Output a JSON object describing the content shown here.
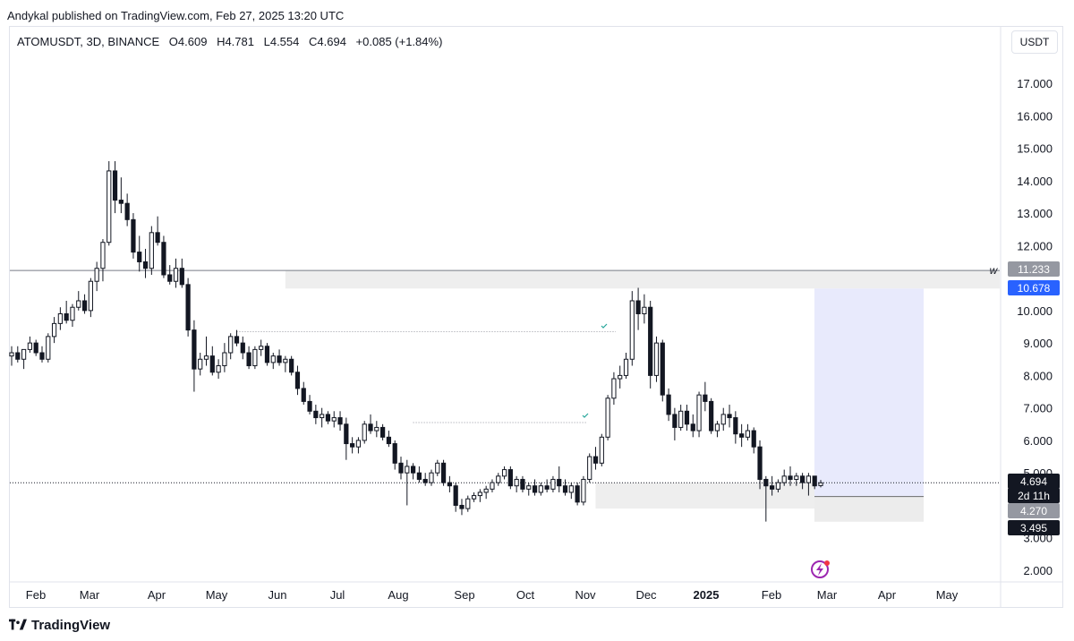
{
  "publisher_line": "Andykal published on TradingView.com, Feb 27, 2025 13:20 UTC",
  "legend": {
    "symbol": "ATOMUSDT, 3D, BINANCE",
    "open": "O4.609",
    "high": "H4.781",
    "low": "L4.554",
    "close": "C4.694",
    "change": "+0.085 (+1.84%)"
  },
  "currency_button": "USDT",
  "footer_brand": "TradingView",
  "colors": {
    "bull_body": "#ffffff",
    "bear_body": "#131722",
    "wick": "#131722",
    "zone": "#eeeeee",
    "position_zone": "#e8eafc",
    "accent_blue": "#2962ff",
    "check_green": "#26a69a"
  },
  "chart_data": {
    "type": "candlestick",
    "title": "ATOMUSDT, 3D, BINANCE",
    "y_axis": {
      "ticks": [
        "17.000",
        "16.000",
        "15.000",
        "14.000",
        "13.000",
        "12.000",
        "10.000",
        "9.000",
        "8.000",
        "7.000",
        "6.000",
        "5.000",
        "3.000",
        "2.000"
      ],
      "ylim": [
        1.7,
        18.4
      ]
    },
    "x_axis": {
      "ticks": [
        "Feb",
        "Mar",
        "Apr",
        "May",
        "Jun",
        "Jul",
        "Aug",
        "Sep",
        "Oct",
        "Nov",
        "Dec",
        "2025",
        "Feb",
        "Mar",
        "Apr",
        "May"
      ],
      "bold_ticks": [
        "2025"
      ]
    },
    "candle_interval_days": 3,
    "ohlc": [
      [
        8.6,
        8.9,
        8.3,
        8.7
      ],
      [
        8.7,
        8.9,
        8.4,
        8.5
      ],
      [
        8.5,
        8.8,
        8.2,
        8.8
      ],
      [
        8.8,
        9.2,
        8.7,
        9.0
      ],
      [
        9.0,
        9.1,
        8.6,
        8.7
      ],
      [
        8.7,
        8.9,
        8.4,
        8.5
      ],
      [
        8.5,
        9.3,
        8.4,
        9.2
      ],
      [
        9.2,
        9.8,
        9.0,
        9.6
      ],
      [
        9.6,
        10.1,
        9.4,
        9.9
      ],
      [
        9.9,
        10.3,
        9.6,
        9.7
      ],
      [
        9.7,
        10.2,
        9.5,
        10.1
      ],
      [
        10.1,
        10.6,
        10.0,
        10.3
      ],
      [
        10.3,
        10.5,
        9.9,
        10.0
      ],
      [
        10.0,
        11.0,
        9.8,
        10.9
      ],
      [
        10.9,
        11.5,
        10.6,
        11.3
      ],
      [
        11.3,
        12.2,
        10.9,
        12.1
      ],
      [
        12.1,
        14.6,
        12.0,
        14.3
      ],
      [
        14.3,
        14.6,
        13.0,
        13.4
      ],
      [
        13.4,
        14.1,
        13.0,
        13.3
      ],
      [
        13.3,
        13.6,
        12.6,
        12.8
      ],
      [
        12.8,
        13.0,
        11.6,
        11.8
      ],
      [
        11.8,
        12.3,
        11.2,
        11.5
      ],
      [
        11.5,
        11.9,
        11.0,
        11.3
      ],
      [
        11.3,
        12.6,
        11.1,
        12.4
      ],
      [
        12.4,
        12.9,
        12.0,
        12.1
      ],
      [
        12.1,
        12.3,
        11.0,
        11.1
      ],
      [
        11.1,
        11.4,
        10.8,
        10.9
      ],
      [
        10.9,
        11.6,
        10.7,
        11.3
      ],
      [
        11.3,
        11.6,
        10.7,
        10.8
      ],
      [
        10.8,
        11.0,
        9.2,
        9.4
      ],
      [
        9.4,
        9.7,
        7.5,
        8.2
      ],
      [
        8.2,
        8.7,
        8.0,
        8.5
      ],
      [
        8.5,
        9.2,
        8.3,
        8.6
      ],
      [
        8.6,
        8.9,
        8.0,
        8.1
      ],
      [
        8.1,
        8.5,
        7.9,
        8.3
      ],
      [
        8.3,
        9.0,
        8.1,
        8.7
      ],
      [
        8.7,
        9.3,
        8.5,
        9.2
      ],
      [
        9.2,
        9.4,
        8.9,
        9.0
      ],
      [
        9.0,
        9.2,
        8.5,
        8.7
      ],
      [
        8.7,
        8.9,
        8.2,
        8.3
      ],
      [
        8.3,
        8.9,
        8.2,
        8.8
      ],
      [
        8.8,
        9.1,
        8.6,
        8.9
      ],
      [
        8.9,
        9.0,
        8.3,
        8.4
      ],
      [
        8.4,
        8.7,
        8.2,
        8.6
      ],
      [
        8.6,
        8.8,
        8.3,
        8.4
      ],
      [
        8.4,
        8.6,
        8.1,
        8.5
      ],
      [
        8.5,
        8.6,
        8.0,
        8.1
      ],
      [
        8.1,
        8.3,
        7.4,
        7.6
      ],
      [
        7.6,
        7.8,
        7.1,
        7.2
      ],
      [
        7.2,
        7.4,
        6.8,
        6.9
      ],
      [
        6.9,
        7.1,
        6.5,
        6.7
      ],
      [
        6.7,
        7.0,
        6.4,
        6.8
      ],
      [
        6.8,
        6.9,
        6.5,
        6.6
      ],
      [
        6.6,
        6.9,
        6.4,
        6.7
      ],
      [
        6.7,
        6.9,
        6.3,
        6.5
      ],
      [
        6.5,
        6.7,
        5.4,
        5.9
      ],
      [
        5.9,
        6.1,
        5.6,
        5.8
      ],
      [
        5.8,
        6.1,
        5.6,
        6.0
      ],
      [
        6.0,
        6.6,
        5.9,
        6.5
      ],
      [
        6.5,
        6.8,
        6.2,
        6.3
      ],
      [
        6.3,
        6.6,
        6.1,
        6.4
      ],
      [
        6.4,
        6.5,
        6.0,
        6.1
      ],
      [
        6.1,
        6.3,
        5.8,
        5.9
      ],
      [
        5.9,
        6.0,
        5.1,
        5.3
      ],
      [
        5.3,
        5.5,
        4.8,
        5.0
      ],
      [
        5.0,
        5.4,
        4.0,
        5.2
      ],
      [
        5.2,
        5.3,
        4.8,
        5.0
      ],
      [
        5.0,
        5.2,
        4.7,
        4.8
      ],
      [
        4.8,
        5.0,
        4.6,
        4.7
      ],
      [
        4.7,
        5.1,
        4.6,
        5.0
      ],
      [
        5.0,
        5.4,
        4.9,
        5.3
      ],
      [
        5.3,
        5.4,
        4.6,
        4.7
      ],
      [
        4.7,
        4.9,
        4.4,
        4.6
      ],
      [
        4.6,
        4.7,
        3.8,
        4.0
      ],
      [
        4.0,
        4.2,
        3.7,
        3.9
      ],
      [
        3.9,
        4.3,
        3.8,
        4.2
      ],
      [
        4.2,
        4.4,
        4.1,
        4.3
      ],
      [
        4.3,
        4.5,
        4.1,
        4.4
      ],
      [
        4.4,
        4.6,
        4.2,
        4.5
      ],
      [
        4.5,
        4.8,
        4.4,
        4.7
      ],
      [
        4.7,
        5.0,
        4.6,
        4.9
      ],
      [
        4.9,
        5.2,
        4.8,
        5.1
      ],
      [
        5.1,
        5.2,
        4.5,
        4.6
      ],
      [
        4.6,
        4.9,
        4.4,
        4.8
      ],
      [
        4.8,
        4.9,
        4.4,
        4.5
      ],
      [
        4.5,
        4.7,
        4.3,
        4.6
      ],
      [
        4.6,
        4.8,
        4.3,
        4.4
      ],
      [
        4.4,
        4.7,
        4.3,
        4.6
      ],
      [
        4.6,
        4.8,
        4.4,
        4.5
      ],
      [
        4.5,
        4.9,
        4.4,
        4.8
      ],
      [
        4.8,
        5.2,
        4.4,
        4.6
      ],
      [
        4.6,
        4.8,
        4.3,
        4.4
      ],
      [
        4.4,
        4.7,
        4.2,
        4.6
      ],
      [
        4.6,
        4.7,
        4.0,
        4.1
      ],
      [
        4.1,
        4.9,
        4.0,
        4.8
      ],
      [
        4.8,
        5.6,
        4.7,
        5.5
      ],
      [
        5.5,
        5.8,
        5.1,
        5.3
      ],
      [
        5.3,
        6.2,
        5.2,
        6.1
      ],
      [
        6.1,
        7.4,
        6.0,
        7.3
      ],
      [
        7.3,
        8.1,
        7.1,
        7.9
      ],
      [
        7.9,
        8.3,
        7.6,
        8.0
      ],
      [
        8.0,
        8.7,
        7.9,
        8.5
      ],
      [
        8.5,
        10.6,
        8.3,
        10.3
      ],
      [
        10.3,
        10.7,
        9.4,
        9.9
      ],
      [
        9.9,
        10.5,
        9.6,
        10.1
      ],
      [
        10.1,
        10.3,
        7.6,
        8.0
      ],
      [
        8.0,
        9.2,
        7.8,
        9.0
      ],
      [
        9.0,
        9.1,
        7.2,
        7.4
      ],
      [
        7.4,
        7.6,
        6.6,
        6.8
      ],
      [
        6.8,
        7.0,
        6.0,
        6.4
      ],
      [
        6.4,
        7.1,
        6.3,
        6.9
      ],
      [
        6.9,
        7.1,
        6.3,
        6.5
      ],
      [
        6.5,
        6.8,
        6.1,
        6.3
      ],
      [
        6.3,
        7.5,
        6.1,
        7.4
      ],
      [
        7.4,
        7.8,
        6.9,
        7.2
      ],
      [
        7.2,
        7.3,
        6.2,
        6.3
      ],
      [
        6.3,
        6.6,
        6.1,
        6.5
      ],
      [
        6.5,
        7.0,
        6.3,
        6.8
      ],
      [
        6.8,
        7.1,
        6.4,
        6.7
      ],
      [
        6.7,
        6.9,
        5.9,
        6.2
      ],
      [
        6.2,
        6.5,
        5.8,
        6.1
      ],
      [
        6.1,
        6.5,
        6.0,
        6.3
      ],
      [
        6.3,
        6.4,
        5.6,
        5.8
      ],
      [
        5.8,
        6.0,
        4.5,
        4.8
      ],
      [
        4.8,
        4.9,
        3.5,
        4.6
      ],
      [
        4.6,
        4.9,
        4.3,
        4.5
      ],
      [
        4.5,
        4.8,
        4.4,
        4.7
      ],
      [
        4.7,
        5.1,
        4.6,
        4.9
      ],
      [
        4.9,
        5.2,
        4.6,
        4.8
      ],
      [
        4.8,
        5.0,
        4.6,
        4.9
      ],
      [
        4.9,
        5.0,
        4.5,
        4.7
      ],
      [
        4.7,
        5.0,
        4.3,
        4.9
      ],
      [
        4.9,
        4.9,
        4.5,
        4.6
      ],
      [
        4.609,
        4.781,
        4.554,
        4.694
      ]
    ],
    "horizontal_levels": [
      {
        "label": "w",
        "price": 11.233
      },
      {
        "label": "",
        "price": 10.678
      }
    ],
    "zones": [
      {
        "name": "supply-zone",
        "top": 11.233,
        "bottom": 10.678
      },
      {
        "name": "demand-zone",
        "top": 4.7,
        "bottom": 3.9
      }
    ],
    "long_position": {
      "entry": 4.27,
      "target": 10.678,
      "stop": 3.495
    },
    "price_labels": [
      {
        "value": "11.233",
        "style": "grey"
      },
      {
        "value": "10.678",
        "style": "blue"
      },
      {
        "value": "4.694",
        "style": "dark"
      },
      {
        "value": "2d 11h",
        "style": "dark"
      },
      {
        "value": "4.270",
        "style": "grey"
      },
      {
        "value": "3.495",
        "style": "dark"
      }
    ],
    "checkmarks": 2,
    "last_price": 4.694
  }
}
